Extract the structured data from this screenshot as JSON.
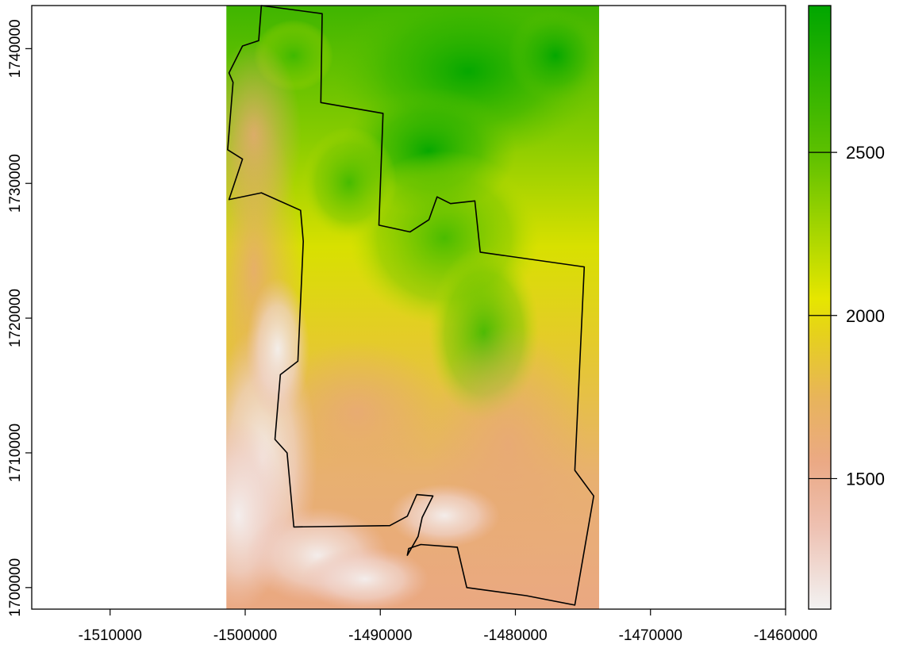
{
  "chart_data": {
    "type": "heatmap",
    "title": "",
    "xlabel": "",
    "ylabel": "",
    "xlim": [
      -1515800,
      -1460000
    ],
    "ylim": [
      1698400,
      1743200
    ],
    "raster_extent": {
      "x": [
        -1501400,
        -1473800
      ],
      "y": [
        1698400,
        1743200
      ]
    },
    "x_ticks": [
      {
        "value": -1510000,
        "label": "-1510000"
      },
      {
        "value": -1500000,
        "label": "-1500000"
      },
      {
        "value": -1490000,
        "label": "-1490000"
      },
      {
        "value": -1480000,
        "label": "-1480000"
      },
      {
        "value": -1470000,
        "label": "-1470000"
      },
      {
        "value": -1460000,
        "label": "-1460000"
      }
    ],
    "y_ticks": [
      {
        "value": 1700000,
        "label": "1700000"
      },
      {
        "value": 1710000,
        "label": "1710000"
      },
      {
        "value": 1720000,
        "label": "1720000"
      },
      {
        "value": 1730000,
        "label": "1730000"
      },
      {
        "value": 1740000,
        "label": "1740000"
      }
    ],
    "legend": {
      "placement": "right",
      "range": [
        1100,
        2950
      ],
      "ticks": [
        {
          "value": 1500,
          "label": "1500"
        },
        {
          "value": 2000,
          "label": "2000"
        },
        {
          "value": 2500,
          "label": "2500"
        }
      ],
      "colors": [
        {
          "value": 1100,
          "color": "#f2f2f2"
        },
        {
          "value": 1350,
          "color": "#eec1b2"
        },
        {
          "value": 1550,
          "color": "#eba985"
        },
        {
          "value": 1750,
          "color": "#e8b45a"
        },
        {
          "value": 1950,
          "color": "#e6d21a"
        },
        {
          "value": 2050,
          "color": "#e6e600"
        },
        {
          "value": 2250,
          "color": "#a8d600"
        },
        {
          "value": 2500,
          "color": "#5cc000"
        },
        {
          "value": 2950,
          "color": "#00a600"
        }
      ]
    },
    "boundary": [
      [
        -1498800,
        1743200
      ],
      [
        -1494300,
        1742600
      ],
      [
        -1494400,
        1736000
      ],
      [
        -1489800,
        1735200
      ],
      [
        -1490100,
        1726900
      ],
      [
        -1487800,
        1726400
      ],
      [
        -1486400,
        1727300
      ],
      [
        -1485800,
        1729000
      ],
      [
        -1484800,
        1728500
      ],
      [
        -1483000,
        1728700
      ],
      [
        -1482600,
        1724900
      ],
      [
        -1474900,
        1723800
      ],
      [
        -1475600,
        1708700
      ],
      [
        -1474200,
        1706800
      ],
      [
        -1475600,
        1698700
      ],
      [
        -1479200,
        1699400
      ],
      [
        -1483600,
        1700000
      ],
      [
        -1484300,
        1703000
      ],
      [
        -1487000,
        1703200
      ],
      [
        -1487900,
        1702900
      ],
      [
        -1488000,
        1702400
      ],
      [
        -1487200,
        1703800
      ],
      [
        -1486900,
        1705200
      ],
      [
        -1486100,
        1706800
      ],
      [
        -1487300,
        1706900
      ],
      [
        -1488000,
        1705300
      ],
      [
        -1489300,
        1704600
      ],
      [
        -1496400,
        1704500
      ],
      [
        -1496900,
        1710000
      ],
      [
        -1497800,
        1711000
      ],
      [
        -1497400,
        1715800
      ],
      [
        -1496100,
        1716800
      ],
      [
        -1495700,
        1725700
      ],
      [
        -1495900,
        1728000
      ],
      [
        -1498800,
        1729300
      ],
      [
        -1501200,
        1728800
      ],
      [
        -1500200,
        1731800
      ],
      [
        -1501300,
        1732500
      ],
      [
        -1500900,
        1737500
      ],
      [
        -1501200,
        1738200
      ],
      [
        -1500200,
        1740200
      ],
      [
        -1499000,
        1740600
      ]
    ]
  }
}
